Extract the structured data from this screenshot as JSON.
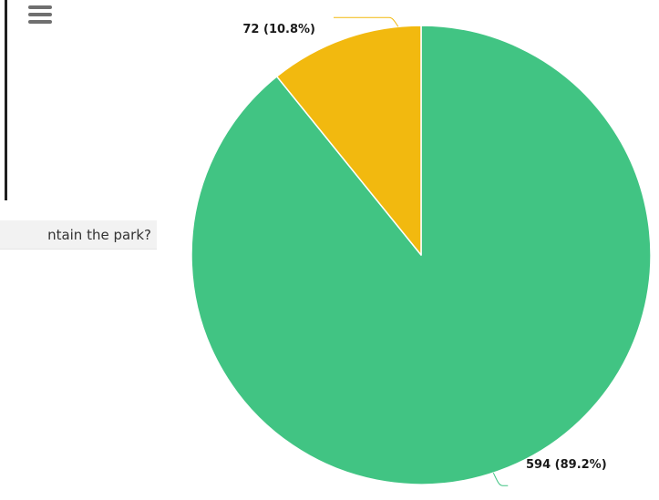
{
  "question": {
    "partial_text": "ntain the park?"
  },
  "menu": {
    "icon": "hamburger-menu-icon"
  },
  "chart_data": {
    "type": "pie",
    "title": "",
    "slices": [
      {
        "label": "594 (89.2%)",
        "value": 594,
        "percent": 89.2,
        "color": "#41c483"
      },
      {
        "label": "72 (10.8%)",
        "value": 72,
        "percent": 10.8,
        "color": "#f2b90f"
      }
    ],
    "legend": "none",
    "connector_color": "#f2b90f"
  }
}
